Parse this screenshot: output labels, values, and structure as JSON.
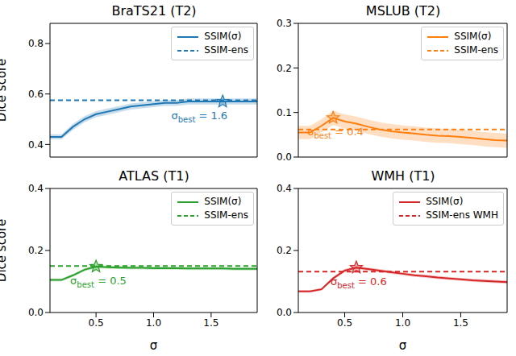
{
  "chart_data": [
    {
      "type": "line",
      "title": "BraTS21 (T2)",
      "y_label": "Dice score",
      "x": [
        0.1,
        0.2,
        0.3,
        0.4,
        0.5,
        0.6,
        0.7,
        0.8,
        0.9,
        1.0,
        1.1,
        1.2,
        1.3,
        1.4,
        1.5,
        1.6,
        1.7,
        1.8,
        1.9
      ],
      "xlim": [
        0.1,
        1.9
      ],
      "xticks": [
        0.5,
        {
          "value": 1,
          "label": "1.0"
        },
        1.5
      ],
      "ylim": [
        0.35,
        0.88
      ],
      "yticks": [
        0.4,
        0.6,
        0.8
      ],
      "tick_labels": "y",
      "legend": "upper right",
      "series": [
        {
          "name": "SSIM(σ)",
          "color": "#1f77b4",
          "values": [
            0.43,
            0.43,
            0.47,
            0.5,
            0.52,
            0.53,
            0.54,
            0.55,
            0.555,
            0.56,
            0.565,
            0.565,
            0.57,
            0.57,
            0.57,
            0.57,
            0.57,
            0.57,
            0.57
          ],
          "error": [
            0.01,
            0.01,
            0.012,
            0.012,
            0.012,
            0.012,
            0.012,
            0.012,
            0.012,
            0.012,
            0.012,
            0.012,
            0.012,
            0.012,
            0.012,
            0.012,
            0.012,
            0.012,
            0.012
          ]
        },
        {
          "name": "SSIM-ens",
          "color": "#1f77b4",
          "line_style": "dashed",
          "values": [
            0.575,
            0.575,
            0.575,
            0.575,
            0.575,
            0.575,
            0.575,
            0.575,
            0.575,
            0.575,
            0.575,
            0.575,
            0.575,
            0.575,
            0.575,
            0.575,
            0.575,
            0.575,
            0.575
          ]
        }
      ],
      "annotation": {
        "parts": [
          "σ",
          "best",
          " = 1.6"
        ],
        "x": 1.6,
        "y": 0.57
      }
    },
    {
      "type": "line",
      "title": "MSLUB (T2)",
      "x": [
        0.1,
        0.2,
        0.3,
        0.4,
        0.5,
        0.6,
        0.7,
        0.8,
        0.9,
        1.0,
        1.1,
        1.2,
        1.3,
        1.4,
        1.5,
        1.6,
        1.7,
        1.8,
        1.9
      ],
      "xlim": [
        0.1,
        1.9
      ],
      "xticks": [
        0.5,
        {
          "value": 1,
          "label": "1.0"
        },
        1.5
      ],
      "ylim": [
        0,
        0.3
      ],
      "yticks": [
        {
          "value": 0,
          "label": "0.0"
        },
        0.1,
        0.2,
        0.3
      ],
      "tick_labels": "y",
      "legend": "upper right",
      "series": [
        {
          "name": "SSIM(σ)",
          "color": "#ff7f0e",
          "values": [
            0.055,
            0.055,
            0.07,
            0.088,
            0.08,
            0.075,
            0.068,
            0.062,
            0.058,
            0.055,
            0.053,
            0.05,
            0.048,
            0.047,
            0.045,
            0.043,
            0.04,
            0.038,
            0.037
          ],
          "error": [
            0.015,
            0.015,
            0.015,
            0.016,
            0.016,
            0.016,
            0.016,
            0.016,
            0.016,
            0.016,
            0.016,
            0.016,
            0.016,
            0.016,
            0.016,
            0.016,
            0.016,
            0.016,
            0.016
          ]
        },
        {
          "name": "SSIM-ens",
          "color": "#ff7f0e",
          "line_style": "dashed",
          "values": [
            0.062,
            0.062,
            0.062,
            0.062,
            0.062,
            0.062,
            0.062,
            0.062,
            0.062,
            0.062,
            0.062,
            0.062,
            0.062,
            0.062,
            0.062,
            0.062,
            0.062,
            0.062,
            0.062
          ]
        }
      ],
      "annotation": {
        "parts": [
          "σ",
          "best",
          " = 0.4"
        ],
        "x": 0.4,
        "y": 0.088
      }
    },
    {
      "type": "line",
      "title": "ATLAS (T1)",
      "y_label": "Dice score",
      "x_label": "σ",
      "x": [
        0.1,
        0.2,
        0.3,
        0.4,
        0.5,
        0.6,
        0.7,
        0.8,
        0.9,
        1.0,
        1.1,
        1.2,
        1.3,
        1.4,
        1.5,
        1.6,
        1.7,
        1.8,
        1.9
      ],
      "xlim": [
        0.1,
        1.9
      ],
      "xticks": [
        0.5,
        {
          "value": 1,
          "label": "1.0"
        },
        1.5
      ],
      "ylim": [
        0,
        0.4
      ],
      "yticks": [
        {
          "value": 0,
          "label": "0.0"
        },
        0.2,
        0.4
      ],
      "legend": "upper right",
      "series": [
        {
          "name": "SSIM(σ)",
          "color": "#2ca02c",
          "values": [
            0.105,
            0.105,
            0.12,
            0.138,
            0.148,
            0.146,
            0.145,
            0.144,
            0.144,
            0.143,
            0.143,
            0.143,
            0.142,
            0.142,
            0.142,
            0.142,
            0.141,
            0.141,
            0.141
          ],
          "error": [
            0.005,
            0.005,
            0.005,
            0.005,
            0.005,
            0.005,
            0.005,
            0.005,
            0.005,
            0.005,
            0.005,
            0.005,
            0.005,
            0.005,
            0.005,
            0.005,
            0.005,
            0.005,
            0.005
          ]
        },
        {
          "name": "SSIM-ens",
          "color": "#2ca02c",
          "line_style": "dashed",
          "values": [
            0.15,
            0.15,
            0.15,
            0.15,
            0.15,
            0.15,
            0.15,
            0.15,
            0.15,
            0.15,
            0.15,
            0.15,
            0.15,
            0.15,
            0.15,
            0.15,
            0.15,
            0.15,
            0.15
          ]
        }
      ],
      "annotation": {
        "parts": [
          "σ",
          "best",
          " = 0.5"
        ],
        "x": 0.5,
        "y": 0.148
      }
    },
    {
      "type": "line",
      "title": "WMH (T1)",
      "x_label": "σ",
      "x": [
        0.1,
        0.2,
        0.3,
        0.4,
        0.5,
        0.6,
        0.7,
        0.8,
        0.9,
        1.0,
        1.1,
        1.2,
        1.3,
        1.4,
        1.5,
        1.6,
        1.7,
        1.8,
        1.9
      ],
      "xlim": [
        0.1,
        1.9
      ],
      "xticks": [
        0.5,
        {
          "value": 1,
          "label": "1.0"
        },
        1.5
      ],
      "ylim": [
        0,
        0.4
      ],
      "yticks": [
        {
          "value": 0,
          "label": "0.0"
        },
        0.2,
        0.4
      ],
      "legend": "upper right",
      "series": [
        {
          "name": "SSIM(σ)",
          "color": "#d62728",
          "values": [
            0.068,
            0.068,
            0.075,
            0.11,
            0.135,
            0.145,
            0.14,
            0.135,
            0.13,
            0.125,
            0.12,
            0.117,
            0.113,
            0.11,
            0.107,
            0.104,
            0.102,
            0.1,
            0.098
          ],
          "error": [
            0.004,
            0.004,
            0.004,
            0.005,
            0.005,
            0.005,
            0.005,
            0.005,
            0.005,
            0.005,
            0.005,
            0.005,
            0.005,
            0.005,
            0.005,
            0.005,
            0.005,
            0.005,
            0.005
          ]
        },
        {
          "name": "SSIM-ens WMH",
          "color": "#d62728",
          "line_style": "dashed",
          "values": [
            0.132,
            0.132,
            0.132,
            0.132,
            0.132,
            0.132,
            0.132,
            0.132,
            0.132,
            0.132,
            0.132,
            0.132,
            0.132,
            0.132,
            0.132,
            0.132,
            0.132,
            0.132,
            0.132
          ]
        }
      ],
      "annotation": {
        "parts": [
          "σ",
          "best",
          " = 0.6"
        ],
        "x": 0.6,
        "y": 0.145
      }
    }
  ]
}
